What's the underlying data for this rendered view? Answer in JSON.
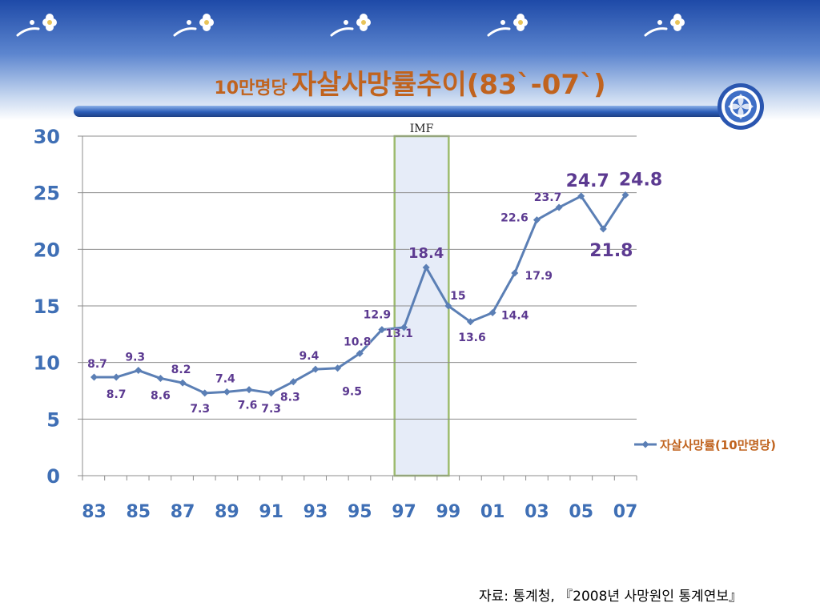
{
  "title": {
    "small": "10만명당",
    "main": "자살사망률추이(83`-07`)"
  },
  "source": "자료: 통계청, 『2008년 사망원인 통계연보』",
  "icons": [
    "flower-icon",
    "emblem-icon"
  ],
  "colors": {
    "line": "#5b7fb5",
    "label": "#5c3a91",
    "title": "#c0631e",
    "axis_label": "#3f6fb5",
    "imf_fill": "#e6ecf8",
    "imf_border": "#9dbb6e"
  },
  "chart_data": {
    "type": "line",
    "title": "",
    "xlabel": "",
    "ylabel": "",
    "ylim": [
      0,
      30
    ],
    "yticks": [
      "0",
      "5",
      "10",
      "15",
      "20",
      "25",
      "30"
    ],
    "xtick_labels": [
      "83",
      "85",
      "87",
      "89",
      "91",
      "93",
      "95",
      "97",
      "99",
      "01",
      "03",
      "05",
      "07"
    ],
    "x": [
      1983,
      1984,
      1985,
      1986,
      1987,
      1988,
      1989,
      1990,
      1991,
      1992,
      1993,
      1994,
      1995,
      1996,
      1997,
      1998,
      1999,
      2000,
      2001,
      2002,
      2003,
      2004,
      2005,
      2006,
      2007
    ],
    "series": [
      {
        "name": "자살사망률(10만명당)",
        "values": [
          8.7,
          8.7,
          9.3,
          8.6,
          8.2,
          7.3,
          7.4,
          7.6,
          7.3,
          8.3,
          9.4,
          9.5,
          10.8,
          12.9,
          13.1,
          18.4,
          15,
          13.6,
          14.4,
          17.9,
          22.6,
          23.7,
          24.7,
          21.8,
          24.8
        ],
        "labels": [
          "8.7",
          "8.7",
          "9.3",
          "8.6",
          "8.2",
          "7.3",
          "7.4",
          "7.6",
          "7.3",
          "8.3",
          "9.4",
          "9.5",
          "10.8",
          "12.9",
          "13.1",
          "18.4",
          "15",
          "13.6",
          "14.4",
          "17.9",
          "22.6",
          "23.7",
          "24.7",
          "21.8",
          "24.8"
        ]
      }
    ],
    "highlight": {
      "label": "IMF",
      "x_from": 1997,
      "x_to": 1999
    },
    "legend_position": "right",
    "grid": true
  }
}
